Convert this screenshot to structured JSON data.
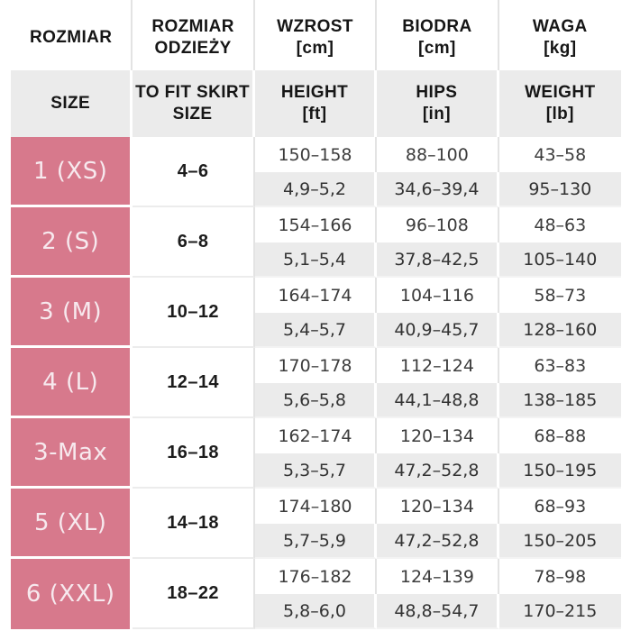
{
  "colors": {
    "accent_pink": "#d7798c",
    "pink_text": "#f7e9ee",
    "gray_row": "#ebebeb",
    "divider": "#e3e3e3",
    "header_text": "#161616",
    "data_text": "#3c3c3c"
  },
  "header_row1": {
    "col1_line1": "ROZMIAR",
    "col2_line1": "ROZMIAR",
    "col2_line2": "ODZIEŻY",
    "col3_line1": "WZROST",
    "col3_line2": "[cm]",
    "col4_line1": "BIODRA",
    "col4_line2": "[cm]",
    "col5_line1": "WAGA",
    "col5_line2": "[kg]"
  },
  "header_row2": {
    "col1_line1": "SIZE",
    "col2_line1": "TO FIT SKIRT",
    "col2_line2": "SIZE",
    "col3_line1": "HEIGHT",
    "col3_line2": "[ft]",
    "col4_line1": "HIPS",
    "col4_line2": "[in]",
    "col5_line1": "WEIGHT",
    "col5_line2": "[lb]"
  },
  "chart_data": {
    "type": "table",
    "title": "Clothing size chart (PL/EN)",
    "columns_pl": [
      "ROZMIAR",
      "ROZMIAR ODZIEŻY",
      "WZROST [cm]",
      "BIODRA [cm]",
      "WAGA [kg]"
    ],
    "columns_en": [
      "SIZE",
      "TO FIT SKIRT SIZE",
      "HEIGHT [ft]",
      "HIPS [in]",
      "WEIGHT [lb]"
    ],
    "rows": [
      {
        "size": "1 (XS)",
        "to_fit_skirt_size": "4–6",
        "height_cm": "150–158",
        "height_ft": "4,9–5,2",
        "hips_cm": "88–100",
        "hips_in": "34,6–39,4",
        "weight_kg": "43–58",
        "weight_lb": "95–130"
      },
      {
        "size": "2 (S)",
        "to_fit_skirt_size": "6–8",
        "height_cm": "154–166",
        "height_ft": "5,1–5,4",
        "hips_cm": "96–108",
        "hips_in": "37,8–42,5",
        "weight_kg": "48–63",
        "weight_lb": "105–140"
      },
      {
        "size": "3 (M)",
        "to_fit_skirt_size": "10–12",
        "height_cm": "164–174",
        "height_ft": "5,4–5,7",
        "hips_cm": "104–116",
        "hips_in": "40,9–45,7",
        "weight_kg": "58–73",
        "weight_lb": "128–160"
      },
      {
        "size": "4 (L)",
        "to_fit_skirt_size": "12–14",
        "height_cm": "170–178",
        "height_ft": "5,6–5,8",
        "hips_cm": "112–124",
        "hips_in": "44,1–48,8",
        "weight_kg": "63–83",
        "weight_lb": "138–185"
      },
      {
        "size": "3-Max",
        "to_fit_skirt_size": "16–18",
        "height_cm": "162–174",
        "height_ft": "5,3–5,7",
        "hips_cm": "120–134",
        "hips_in": "47,2–52,8",
        "weight_kg": "68–88",
        "weight_lb": "150–195"
      },
      {
        "size": "5 (XL)",
        "to_fit_skirt_size": "14–18",
        "height_cm": "174–180",
        "height_ft": "5,7–5,9",
        "hips_cm": "120–134",
        "hips_in": "47,2–52,8",
        "weight_kg": "68–93",
        "weight_lb": "150–205"
      },
      {
        "size": "6 (XXL)",
        "to_fit_skirt_size": "18–22",
        "height_cm": "176–182",
        "height_ft": "5,8–6,0",
        "hips_cm": "124–139",
        "hips_in": "48,8–54,7",
        "weight_kg": "78–98",
        "weight_lb": "170–215"
      }
    ]
  }
}
